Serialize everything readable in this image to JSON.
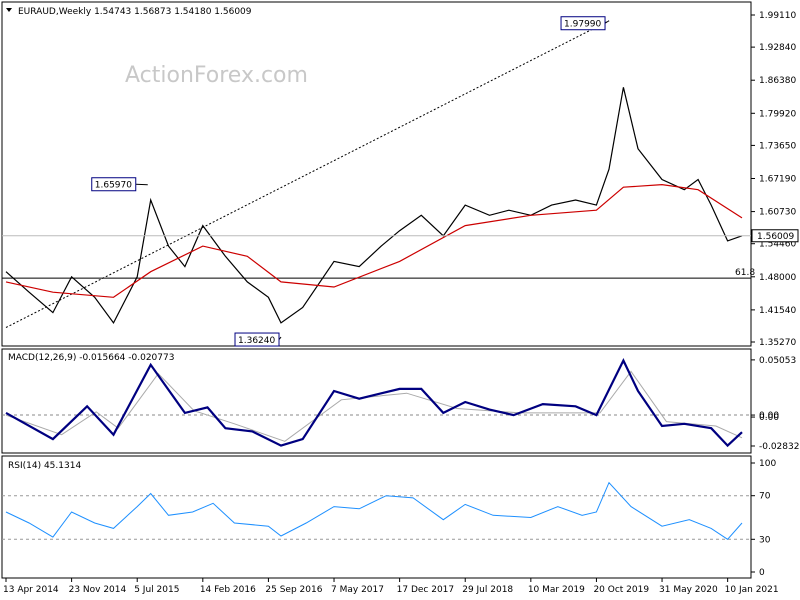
{
  "window": {
    "symbol_line": "EURAUD,Weekly",
    "ohlc": "1.54743 1.56873 1.54180 1.56009",
    "watermark": "ActionForex.com"
  },
  "chart_data": [
    {
      "type": "candlestick",
      "name": "price",
      "y_ticks": [
        "1.99110",
        "1.92840",
        "1.86380",
        "1.79920",
        "1.73650",
        "1.67190",
        "1.60730",
        "1.54460",
        "1.48000",
        "1.41540",
        "1.35270"
      ],
      "ylim": [
        1.3527,
        1.9911
      ],
      "current_price_label": "1.56009",
      "current_price": 1.56009,
      "fib_label": "61.8",
      "fib_level": 1.4775,
      "annotations": [
        {
          "label": "1.97990",
          "value": 1.9799,
          "date": "2019-12-02"
        },
        {
          "label": "1.65970",
          "value": 1.6597,
          "date": "2015-08-10"
        },
        {
          "label": "1.36240",
          "value": 1.3624,
          "date": "2016-11-07"
        }
      ],
      "trendline": [
        {
          "date": "2014-04-13",
          "value": 1.381
        },
        {
          "date": "2019-12-02",
          "value": 1.9799
        }
      ],
      "close": [
        {
          "date": "2014-04-13",
          "value": 1.49
        },
        {
          "date": "2014-07-01",
          "value": 1.45
        },
        {
          "date": "2014-09-20",
          "value": 1.41
        },
        {
          "date": "2014-11-23",
          "value": 1.48
        },
        {
          "date": "2015-02-10",
          "value": 1.44
        },
        {
          "date": "2015-04-15",
          "value": 1.39
        },
        {
          "date": "2015-07-05",
          "value": 1.48
        },
        {
          "date": "2015-08-20",
          "value": 1.63
        },
        {
          "date": "2015-10-20",
          "value": 1.54
        },
        {
          "date": "2015-12-15",
          "value": 1.5
        },
        {
          "date": "2016-02-14",
          "value": 1.58
        },
        {
          "date": "2016-05-01",
          "value": 1.52
        },
        {
          "date": "2016-07-15",
          "value": 1.47
        },
        {
          "date": "2016-09-25",
          "value": 1.44
        },
        {
          "date": "2016-11-07",
          "value": 1.39
        },
        {
          "date": "2017-01-20",
          "value": 1.42
        },
        {
          "date": "2017-05-07",
          "value": 1.51
        },
        {
          "date": "2017-08-01",
          "value": 1.5
        },
        {
          "date": "2017-10-15",
          "value": 1.54
        },
        {
          "date": "2017-12-17",
          "value": 1.57
        },
        {
          "date": "2018-03-01",
          "value": 1.6
        },
        {
          "date": "2018-05-15",
          "value": 1.56
        },
        {
          "date": "2018-07-29",
          "value": 1.62
        },
        {
          "date": "2018-10-20",
          "value": 1.6
        },
        {
          "date": "2018-12-25",
          "value": 1.61
        },
        {
          "date": "2019-03-10",
          "value": 1.6
        },
        {
          "date": "2019-05-20",
          "value": 1.62
        },
        {
          "date": "2019-08-10",
          "value": 1.63
        },
        {
          "date": "2019-10-20",
          "value": 1.62
        },
        {
          "date": "2019-12-02",
          "value": 1.69
        },
        {
          "date": "2020-01-20",
          "value": 1.85
        },
        {
          "date": "2020-03-10",
          "value": 1.73
        },
        {
          "date": "2020-05-31",
          "value": 1.67
        },
        {
          "date": "2020-08-15",
          "value": 1.65
        },
        {
          "date": "2020-10-01",
          "value": 1.67
        },
        {
          "date": "2020-11-15",
          "value": 1.62
        },
        {
          "date": "2021-01-10",
          "value": 1.55
        },
        {
          "date": "2021-02-28",
          "value": 1.56
        }
      ],
      "ma": [
        {
          "date": "2014-04-13",
          "value": 1.47
        },
        {
          "date": "2014-09-20",
          "value": 1.45
        },
        {
          "date": "2015-04-15",
          "value": 1.44
        },
        {
          "date": "2015-08-20",
          "value": 1.49
        },
        {
          "date": "2016-02-14",
          "value": 1.54
        },
        {
          "date": "2016-07-15",
          "value": 1.52
        },
        {
          "date": "2016-11-07",
          "value": 1.47
        },
        {
          "date": "2017-05-07",
          "value": 1.46
        },
        {
          "date": "2017-12-17",
          "value": 1.51
        },
        {
          "date": "2018-07-29",
          "value": 1.58
        },
        {
          "date": "2019-03-10",
          "value": 1.6
        },
        {
          "date": "2019-10-20",
          "value": 1.61
        },
        {
          "date": "2020-01-20",
          "value": 1.655
        },
        {
          "date": "2020-05-31",
          "value": 1.66
        },
        {
          "date": "2020-10-01",
          "value": 1.65
        },
        {
          "date": "2021-02-28",
          "value": 1.595
        }
      ]
    },
    {
      "type": "line",
      "name": "macd",
      "header": "MACD(12,26,9) -0.015664 -0.020773",
      "y_ticks": [
        "0.05053",
        "0.00",
        "0.00",
        "-0.028323"
      ],
      "y_tick_values": [
        0.05053,
        0.0,
        0.0,
        -0.028323
      ],
      "ylim": [
        -0.032,
        0.055
      ],
      "macd": [
        {
          "date": "2014-04-13",
          "value": 0.002
        },
        {
          "date": "2014-09-20",
          "value": -0.022
        },
        {
          "date": "2015-01-15",
          "value": 0.008
        },
        {
          "date": "2015-04-15",
          "value": -0.018
        },
        {
          "date": "2015-08-20",
          "value": 0.046
        },
        {
          "date": "2015-12-15",
          "value": 0.002
        },
        {
          "date": "2016-03-01",
          "value": 0.007
        },
        {
          "date": "2016-05-01",
          "value": -0.012
        },
        {
          "date": "2016-08-01",
          "value": -0.015
        },
        {
          "date": "2016-11-07",
          "value": -0.028
        },
        {
          "date": "2017-01-20",
          "value": -0.022
        },
        {
          "date": "2017-05-07",
          "value": 0.022
        },
        {
          "date": "2017-08-01",
          "value": 0.015
        },
        {
          "date": "2017-12-17",
          "value": 0.024
        },
        {
          "date": "2018-03-01",
          "value": 0.024
        },
        {
          "date": "2018-05-15",
          "value": 0.002
        },
        {
          "date": "2018-07-29",
          "value": 0.012
        },
        {
          "date": "2018-10-20",
          "value": 0.005
        },
        {
          "date": "2019-01-10",
          "value": 0.0
        },
        {
          "date": "2019-04-20",
          "value": 0.01
        },
        {
          "date": "2019-08-10",
          "value": 0.008
        },
        {
          "date": "2019-10-20",
          "value": 0.0
        },
        {
          "date": "2020-01-20",
          "value": 0.05
        },
        {
          "date": "2020-03-10",
          "value": 0.022
        },
        {
          "date": "2020-05-31",
          "value": -0.01
        },
        {
          "date": "2020-08-15",
          "value": -0.008
        },
        {
          "date": "2020-11-15",
          "value": -0.012
        },
        {
          "date": "2021-01-10",
          "value": -0.028
        },
        {
          "date": "2021-02-28",
          "value": -0.0157
        }
      ],
      "signal": [
        {
          "date": "2014-04-13",
          "value": 0.0
        },
        {
          "date": "2014-10-20",
          "value": -0.018
        },
        {
          "date": "2015-02-15",
          "value": 0.003
        },
        {
          "date": "2015-05-01",
          "value": -0.012
        },
        {
          "date": "2015-09-15",
          "value": 0.038
        },
        {
          "date": "2016-01-15",
          "value": 0.004
        },
        {
          "date": "2016-06-01",
          "value": -0.008
        },
        {
          "date": "2016-11-20",
          "value": -0.024
        },
        {
          "date": "2017-06-01",
          "value": 0.014
        },
        {
          "date": "2018-01-10",
          "value": 0.02
        },
        {
          "date": "2018-07-01",
          "value": 0.006
        },
        {
          "date": "2019-02-01",
          "value": 0.002
        },
        {
          "date": "2019-11-01",
          "value": 0.002
        },
        {
          "date": "2020-02-15",
          "value": 0.04
        },
        {
          "date": "2020-06-15",
          "value": -0.006
        },
        {
          "date": "2020-12-01",
          "value": -0.01
        },
        {
          "date": "2021-02-28",
          "value": -0.0208
        }
      ]
    },
    {
      "type": "line",
      "name": "rsi",
      "header": "RSI(14) 45.1314",
      "y_ticks": [
        "100",
        "70",
        "30",
        "0"
      ],
      "y_tick_values": [
        100,
        70,
        30,
        0
      ],
      "ylim": [
        0,
        100
      ],
      "rsi": [
        {
          "date": "2014-04-13",
          "value": 55
        },
        {
          "date": "2014-07-01",
          "value": 45
        },
        {
          "date": "2014-09-20",
          "value": 32
        },
        {
          "date": "2014-11-23",
          "value": 55
        },
        {
          "date": "2015-02-10",
          "value": 45
        },
        {
          "date": "2015-04-15",
          "value": 40
        },
        {
          "date": "2015-07-05",
          "value": 60
        },
        {
          "date": "2015-08-20",
          "value": 72
        },
        {
          "date": "2015-10-20",
          "value": 52
        },
        {
          "date": "2016-01-10",
          "value": 55
        },
        {
          "date": "2016-03-20",
          "value": 63
        },
        {
          "date": "2016-06-01",
          "value": 45
        },
        {
          "date": "2016-09-25",
          "value": 42
        },
        {
          "date": "2016-11-07",
          "value": 33
        },
        {
          "date": "2017-02-01",
          "value": 45
        },
        {
          "date": "2017-05-07",
          "value": 60
        },
        {
          "date": "2017-08-01",
          "value": 58
        },
        {
          "date": "2017-11-01",
          "value": 70
        },
        {
          "date": "2018-02-01",
          "value": 68
        },
        {
          "date": "2018-05-15",
          "value": 48
        },
        {
          "date": "2018-07-29",
          "value": 62
        },
        {
          "date": "2018-11-01",
          "value": 52
        },
        {
          "date": "2019-03-10",
          "value": 50
        },
        {
          "date": "2019-06-10",
          "value": 60
        },
        {
          "date": "2019-09-01",
          "value": 52
        },
        {
          "date": "2019-10-20",
          "value": 55
        },
        {
          "date": "2019-12-02",
          "value": 82
        },
        {
          "date": "2020-02-15",
          "value": 60
        },
        {
          "date": "2020-05-31",
          "value": 42
        },
        {
          "date": "2020-09-01",
          "value": 48
        },
        {
          "date": "2020-11-15",
          "value": 40
        },
        {
          "date": "2021-01-10",
          "value": 30
        },
        {
          "date": "2021-02-28",
          "value": 45
        }
      ]
    }
  ],
  "x_axis": {
    "labels": [
      {
        "text": "13 Apr 2014",
        "date": "2014-04-13"
      },
      {
        "text": "23 Nov 2014",
        "date": "2014-11-23"
      },
      {
        "text": "5 Jul 2015",
        "date": "2015-07-05"
      },
      {
        "text": "14 Feb 2016",
        "date": "2016-02-14"
      },
      {
        "text": "25 Sep 2016",
        "date": "2016-09-25"
      },
      {
        "text": "7 May 2017",
        "date": "2017-05-07"
      },
      {
        "text": "17 Dec 2017",
        "date": "2017-12-17"
      },
      {
        "text": "29 Jul 2018",
        "date": "2018-07-29"
      },
      {
        "text": "10 Mar 2019",
        "date": "2019-03-10"
      },
      {
        "text": "20 Oct 2019",
        "date": "2019-10-20"
      },
      {
        "text": "31 May 2020",
        "date": "2020-05-31"
      },
      {
        "text": "10 Jan 2021",
        "date": "2021-01-10"
      }
    ]
  },
  "colors": {
    "price_line": "#000000",
    "ma_line": "#cc0000",
    "macd_line": "#000080",
    "signal_line": "#aaaaaa",
    "rsi_line": "#1e90ff",
    "label_box_border": "#000080",
    "watermark": "#c8c8c8"
  }
}
